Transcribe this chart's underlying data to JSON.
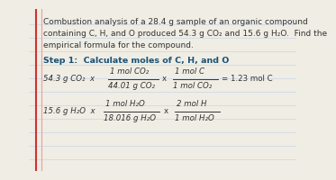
{
  "bg_color": "#f0ede4",
  "line_color": "#c8d8e8",
  "red_line_color": "#cc3333",
  "pink_line_color": "#e8a0a0",
  "title_text": "Combustion analysis of a 28.4 g sample of an organic compound",
  "title_text2": "containing C, H, and O produced 54.3 g CO₂ and 15.6 g H₂O.  Find the",
  "title_text3": "empirical formula for the compound.",
  "step1_label": "Step 1:  Calculate moles of C, H, and O",
  "line1_left": "54.3 g CO₂  x",
  "line1_num": "1 mol CO₂",
  "line1_den": "44.01 g CO₂",
  "line1_x": "x",
  "line1_num2": "1 mol C",
  "line1_den2": "1 mol CO₂",
  "line1_result": "= 1.23 mol C",
  "line2_left": "15.6 g H₂O  x",
  "line2_num": "1 mol H₂O",
  "line2_den": "18.016 g H₂O",
  "line2_x": "x",
  "line2_num2": "2 mol H",
  "line2_den2": "1 mol H₂O",
  "text_color": "#333333",
  "step_color": "#1a5276",
  "fontsize_body": 6.5,
  "fontsize_math": 6.2,
  "fontsize_step": 6.8
}
